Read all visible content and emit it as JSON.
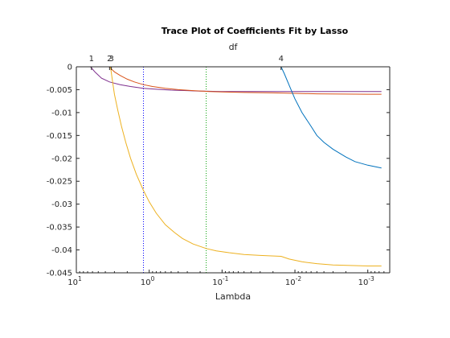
{
  "chart_data": {
    "type": "line",
    "title": "Trace Plot of Coefficients Fit by Lasso",
    "xlabel": "Lambda",
    "top_axis_label": "df",
    "x_scale": "log",
    "x_reversed": true,
    "xlim": [
      10,
      0.0005
    ],
    "ylim": [
      -0.045,
      0
    ],
    "x_ticks": [
      {
        "value": 10,
        "base": "10",
        "exp": "1"
      },
      {
        "value": 1,
        "base": "10",
        "exp": "0"
      },
      {
        "value": 0.1,
        "base": "10",
        "exp": "-1"
      },
      {
        "value": 0.01,
        "base": "10",
        "exp": "-2"
      },
      {
        "value": 0.001,
        "base": "10",
        "exp": "-3"
      }
    ],
    "y_ticks": [
      {
        "value": 0,
        "label": "0"
      },
      {
        "value": -0.005,
        "label": "-0.005"
      },
      {
        "value": -0.01,
        "label": "-0.01"
      },
      {
        "value": -0.015,
        "label": "-0.015"
      },
      {
        "value": -0.02,
        "label": "-0.02"
      },
      {
        "value": -0.025,
        "label": "-0.025"
      },
      {
        "value": -0.03,
        "label": "-0.03"
      },
      {
        "value": -0.035,
        "label": "-0.035"
      },
      {
        "value": -0.04,
        "label": "-0.04"
      },
      {
        "value": -0.045,
        "label": "-0.045"
      }
    ],
    "df_ticks": [
      {
        "lambda": 6.2,
        "label": "1"
      },
      {
        "lambda": 3.5,
        "label": "2"
      },
      {
        "lambda": 3.3,
        "label": "3"
      },
      {
        "lambda": 0.0155,
        "label": "4"
      }
    ],
    "vlines": [
      {
        "lambda": 1.2,
        "color": "#0000ff"
      },
      {
        "lambda": 0.165,
        "color": "#00a000"
      }
    ],
    "series": [
      {
        "color": "#7e2f8e",
        "points": [
          [
            6.4,
            0
          ],
          [
            5.5,
            -0.0012
          ],
          [
            4.5,
            -0.0025
          ],
          [
            3.5,
            -0.0033
          ],
          [
            2.5,
            -0.0039
          ],
          [
            1.8,
            -0.0043
          ],
          [
            1.2,
            -0.0047
          ],
          [
            0.8,
            -0.0049
          ],
          [
            0.5,
            -0.0051
          ],
          [
            0.3,
            -0.0052
          ],
          [
            0.2,
            -0.0053
          ],
          [
            0.1,
            -0.0054
          ],
          [
            0.05,
            -0.0054
          ],
          [
            0.01,
            -0.0054
          ],
          [
            0.001,
            -0.0054
          ],
          [
            0.00065,
            -0.0054
          ]
        ]
      },
      {
        "color": "#d95319",
        "points": [
          [
            10,
            0
          ],
          [
            6.5,
            0
          ],
          [
            3.55,
            0
          ],
          [
            3.3,
            -0.0005
          ],
          [
            3.0,
            -0.0011
          ],
          [
            2.5,
            -0.0019
          ],
          [
            2.0,
            -0.0027
          ],
          [
            1.6,
            -0.0033
          ],
          [
            1.2,
            -0.0039
          ],
          [
            0.9,
            -0.0043
          ],
          [
            0.6,
            -0.0047
          ],
          [
            0.4,
            -0.005
          ],
          [
            0.25,
            -0.0052
          ],
          [
            0.15,
            -0.0054
          ],
          [
            0.1,
            -0.0055
          ],
          [
            0.05,
            -0.0056
          ],
          [
            0.02,
            -0.0057
          ],
          [
            0.01,
            -0.0058
          ],
          [
            0.005,
            -0.0059
          ],
          [
            0.001,
            -0.006
          ],
          [
            0.00065,
            -0.006
          ]
        ]
      },
      {
        "color": "#edb120",
        "points": [
          [
            3.4,
            0
          ],
          [
            3.2,
            -0.003
          ],
          [
            3.0,
            -0.006
          ],
          [
            2.7,
            -0.0095
          ],
          [
            2.4,
            -0.013
          ],
          [
            2.1,
            -0.0165
          ],
          [
            1.8,
            -0.02
          ],
          [
            1.5,
            -0.0235
          ],
          [
            1.2,
            -0.027
          ],
          [
            1.0,
            -0.0295
          ],
          [
            0.8,
            -0.032
          ],
          [
            0.6,
            -0.0345
          ],
          [
            0.45,
            -0.0362
          ],
          [
            0.35,
            -0.0375
          ],
          [
            0.25,
            -0.0387
          ],
          [
            0.165,
            -0.0397
          ],
          [
            0.12,
            -0.0402
          ],
          [
            0.08,
            -0.0406
          ],
          [
            0.05,
            -0.041
          ],
          [
            0.03,
            -0.0412
          ],
          [
            0.0155,
            -0.0414
          ],
          [
            0.012,
            -0.042
          ],
          [
            0.008,
            -0.0426
          ],
          [
            0.005,
            -0.043
          ],
          [
            0.003,
            -0.0433
          ],
          [
            0.001,
            -0.0435
          ],
          [
            0.00065,
            -0.0435
          ]
        ]
      },
      {
        "color": "#0072bd",
        "points": [
          [
            10,
            0
          ],
          [
            0.0155,
            0
          ],
          [
            0.014,
            -0.0015
          ],
          [
            0.012,
            -0.004
          ],
          [
            0.01,
            -0.007
          ],
          [
            0.008,
            -0.01
          ],
          [
            0.006,
            -0.013
          ],
          [
            0.005,
            -0.015
          ],
          [
            0.004,
            -0.0165
          ],
          [
            0.003,
            -0.018
          ],
          [
            0.002,
            -0.0197
          ],
          [
            0.0015,
            -0.0207
          ],
          [
            0.001,
            -0.0215
          ],
          [
            0.00065,
            -0.0221
          ]
        ]
      }
    ]
  }
}
